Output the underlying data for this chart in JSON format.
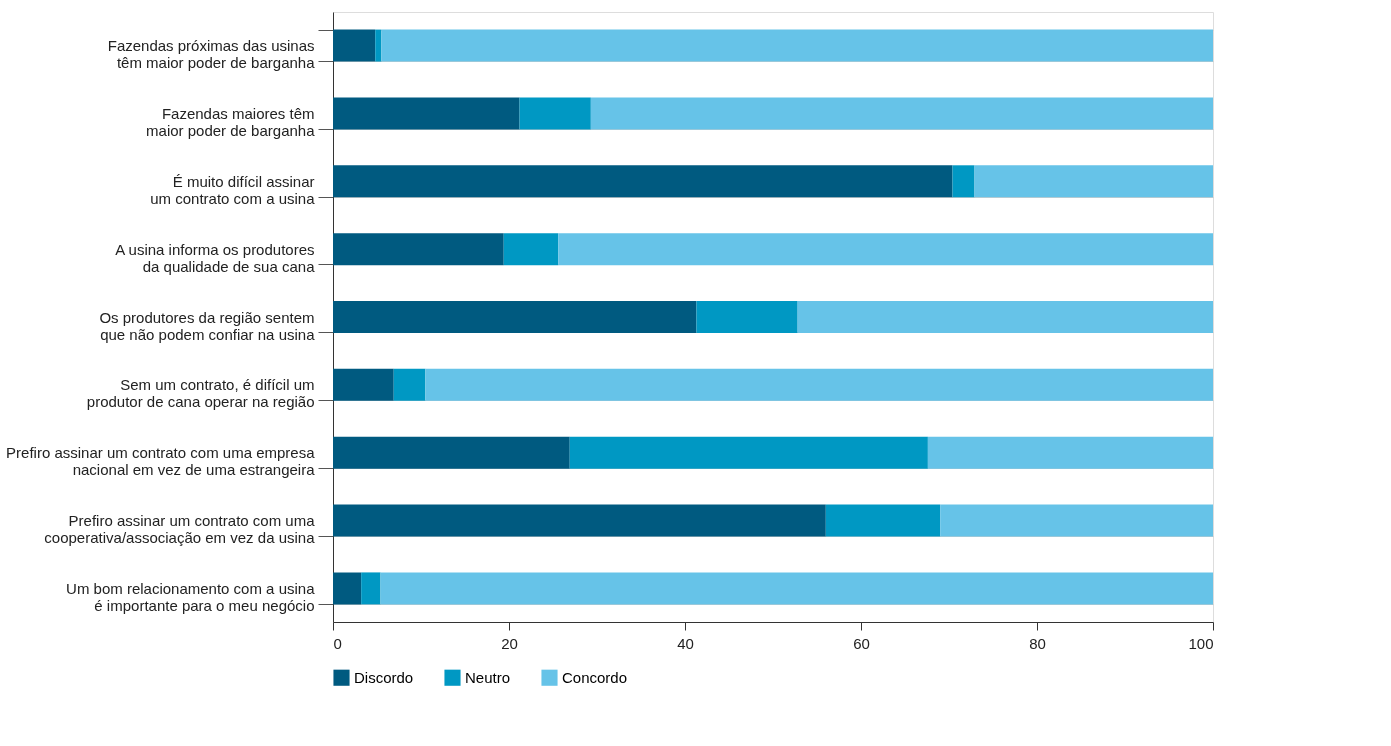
{
  "chart_data": {
    "type": "bar",
    "orientation": "horizontal",
    "stacked": true,
    "categories": [
      "Fazendas próximas das usinas\ntêm maior poder de barganha",
      "Fazendas maiores têm\nmaior poder de barganha",
      "É muito difícil assinar\num contrato com a usina",
      "A usina informa os produtores\nda qualidade de sua cana",
      "Os produtores da região sentem\nque não podem confiar na usina",
      "Sem um contrato, é difícil um\nprodutor de cana operar na região",
      "Prefiro assinar um contrato com uma empresa\nnacional em vez de uma estrangeira",
      "Prefiro assinar um contrato com uma\ncooperativa/associação em vez da usina",
      "Um bom relacionamento com a usina\né importante para o meu negócio"
    ],
    "series": [
      {
        "name": "Discordo",
        "color": "#005a80",
        "values": [
          4.8,
          21.2,
          70.4,
          19.4,
          41.3,
          6.9,
          26.9,
          56.0,
          3.2
        ]
      },
      {
        "name": "Neutro",
        "color": "#0098c3",
        "values": [
          0.7,
          8.1,
          2.5,
          6.2,
          11.5,
          3.6,
          40.7,
          13.0,
          2.2
        ]
      },
      {
        "name": "Concordo",
        "color": "#66c3e8",
        "values": [
          94.5,
          70.7,
          27.1,
          74.4,
          47.2,
          89.5,
          32.4,
          31.0,
          94.6
        ]
      }
    ],
    "xlim": [
      0,
      100
    ],
    "xticks": [
      0,
      20,
      40,
      60,
      80,
      100
    ],
    "grid": "y",
    "legend": "bottom"
  }
}
